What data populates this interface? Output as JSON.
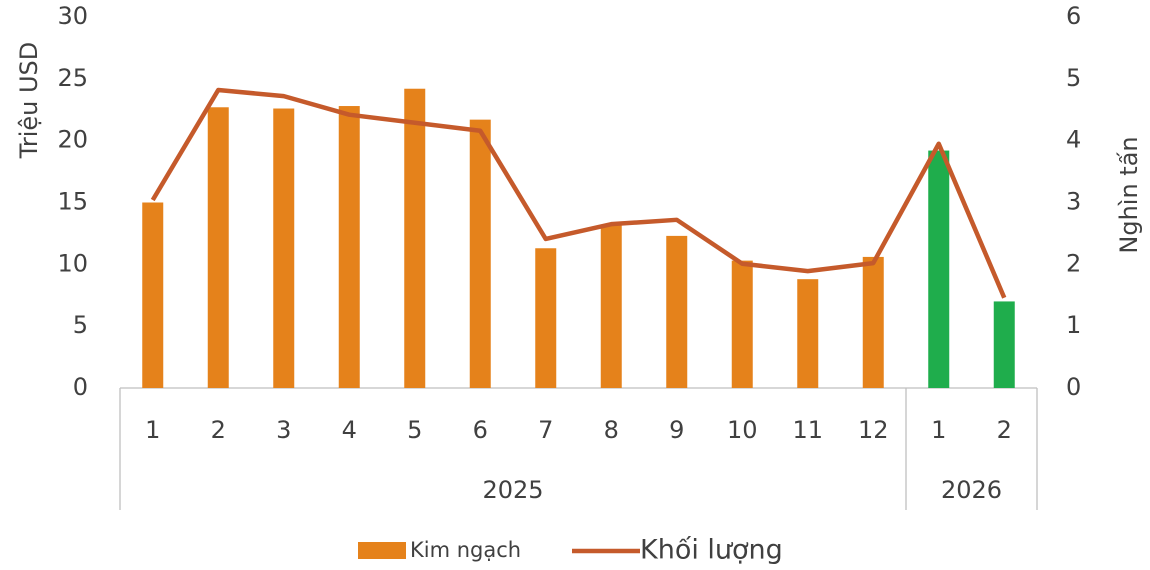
{
  "chart_data": {
    "type": "bar_line",
    "category_groups": [
      {
        "label": "2025",
        "categories": [
          "1",
          "2",
          "3",
          "4",
          "5",
          "6",
          "7",
          "8",
          "9",
          "10",
          "11",
          "12"
        ]
      },
      {
        "label": "2026",
        "categories": [
          "1",
          "2"
        ]
      }
    ],
    "series": [
      {
        "name": "Kim ngạch",
        "type": "bar",
        "axis": "y",
        "color": "#e5821b",
        "colors": [
          "#e5821b",
          "#e5821b",
          "#e5821b",
          "#e5821b",
          "#e5821b",
          "#e5821b",
          "#e5821b",
          "#e5821b",
          "#e5821b",
          "#e5821b",
          "#e5821b",
          "#e5821b",
          "#1fad4c",
          "#1fad4c"
        ],
        "values": [
          15,
          22.7,
          22.6,
          22.8,
          24.2,
          21.7,
          11.3,
          13.2,
          12.3,
          10.3,
          8.8,
          10.6,
          19.2,
          7.0
        ]
      },
      {
        "name": "Khối lượng",
        "type": "line",
        "axis": "y2",
        "color": "#c55a2b",
        "values": [
          3.04,
          4.82,
          4.72,
          4.42,
          4.29,
          4.16,
          2.41,
          2.65,
          2.72,
          2.01,
          1.89,
          2.02,
          3.95,
          1.46
        ]
      }
    ],
    "y_label": "Triệu USD",
    "y2_label": "Nghìn tấn",
    "ylim": [
      0,
      30
    ],
    "yticks": [
      0,
      5,
      10,
      15,
      20,
      25,
      30
    ],
    "y2lim": [
      0,
      6
    ],
    "y2ticks": [
      0,
      1,
      2,
      3,
      4,
      5,
      6
    ],
    "grid": false,
    "legend": "bottom"
  }
}
